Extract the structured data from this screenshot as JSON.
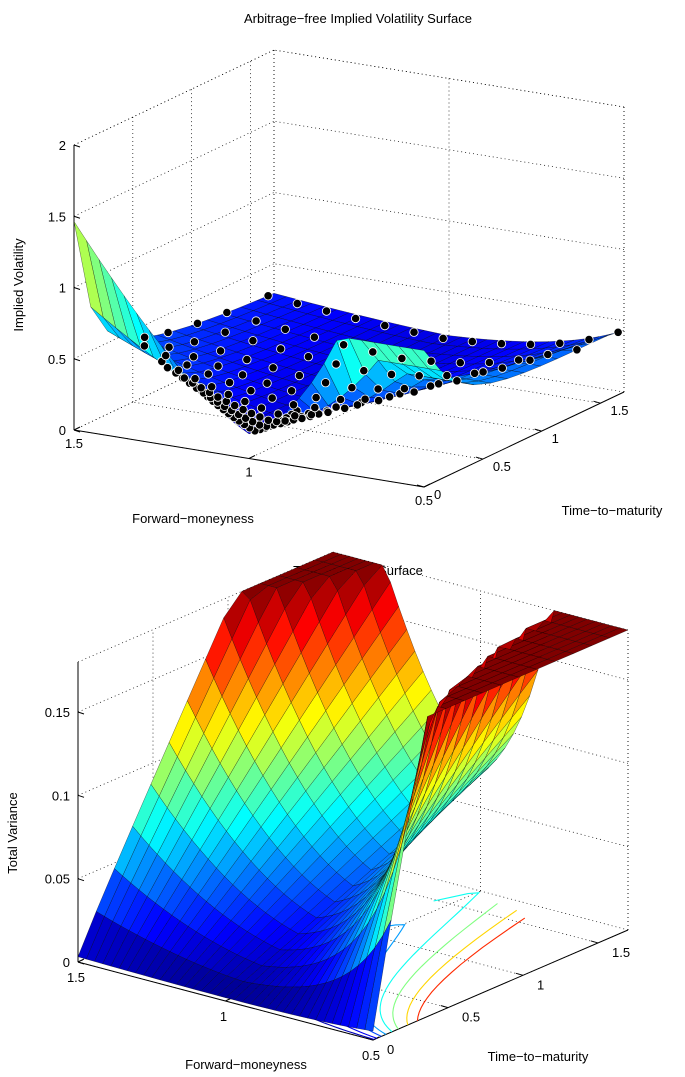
{
  "chart_data": [
    {
      "type": "surface3d",
      "title": "Arbitrage−free Implied Volatility Surface",
      "xlabel": "Forward−moneyness",
      "ylabel": "Time−to−maturity",
      "zlabel": "Implied Volatility",
      "xlim": [
        0.5,
        1.5
      ],
      "ylim": [
        0,
        1.7
      ],
      "zlim": [
        0,
        2
      ],
      "x_ticks": [
        "0.5",
        "1",
        "1.5"
      ],
      "y_ticks": [
        "0",
        "0.5",
        "1",
        "1.5"
      ],
      "z_ticks": [
        "0",
        "0.5",
        "1",
        "1.5",
        "2"
      ],
      "grid": true,
      "colormap": "jet",
      "market_points": {
        "marker": "black-filled-circle",
        "maturities": [
          0.05,
          0.12,
          0.2,
          0.3,
          0.45,
          0.6,
          0.8,
          1.05,
          1.3,
          1.65
        ],
        "moneyness_min": [
          0.88,
          0.85,
          0.82,
          0.78,
          0.72,
          0.66,
          0.6,
          0.55,
          0.5,
          0.5
        ],
        "moneyness_max": [
          1.18,
          1.25,
          1.3,
          1.35,
          1.45,
          1.5,
          1.5,
          1.5,
          1.5,
          1.5
        ]
      }
    },
    {
      "type": "surface3d",
      "title": "Total Variance Surface",
      "xlabel": "Forward−moneyness",
      "ylabel": "Time−to−maturity",
      "zlabel": "Total Variance",
      "xlim": [
        0.5,
        1.5
      ],
      "ylim": [
        0,
        1.7
      ],
      "zlim": [
        0,
        0.18
      ],
      "x_ticks": [
        "0.5",
        "1",
        "1.5"
      ],
      "y_ticks": [
        "0",
        "0.5",
        "1",
        "1.5"
      ],
      "z_ticks": [
        "0",
        "0.05",
        "0.1",
        "0.15"
      ],
      "grid": true,
      "colormap": "jet",
      "contour_levels": [
        0.01,
        0.02,
        0.035,
        0.05,
        0.07,
        0.09,
        0.12,
        0.15
      ]
    }
  ]
}
